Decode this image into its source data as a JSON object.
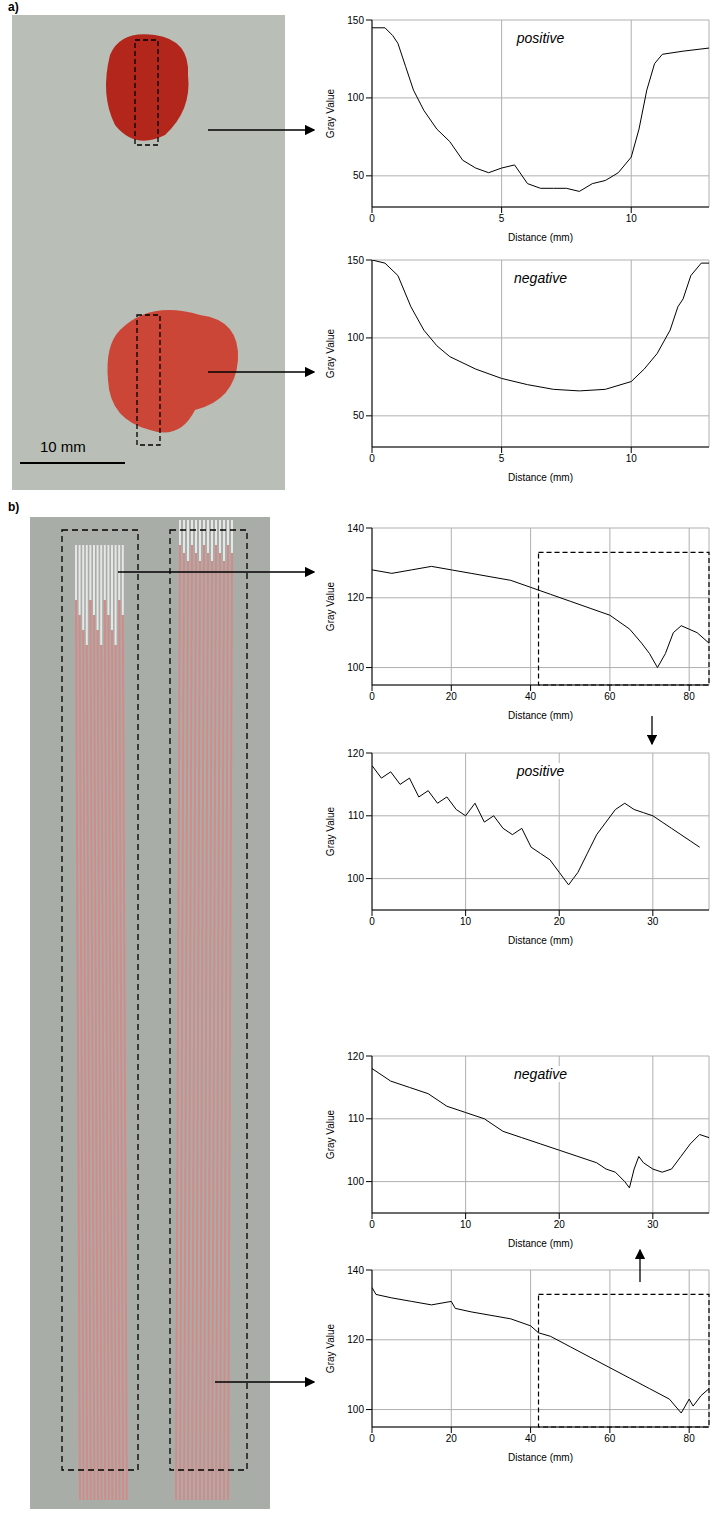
{
  "panel_labels": [
    "a)",
    "b)"
  ],
  "scale_bar": "10 mm",
  "chart_data": [
    {
      "type": "line",
      "title": "positive",
      "x_label": "Distance (mm)",
      "y_label": "Gray Value",
      "color": "#000000",
      "grid": true,
      "x": [
        0,
        0.5,
        0.8,
        1.0,
        1.3,
        1.6,
        2.0,
        2.5,
        3.0,
        3.5,
        4.0,
        4.5,
        5.0,
        5.5,
        6.0,
        6.5,
        7.0,
        7.5,
        8.0,
        8.5,
        9.0,
        9.5,
        10.0,
        10.3,
        10.6,
        10.9,
        11.2,
        12.0,
        13.0
      ],
      "values": [
        145,
        145,
        140,
        135,
        120,
        105,
        92,
        80,
        72,
        60,
        55,
        52,
        55,
        57,
        45,
        42,
        42,
        42,
        40,
        45,
        47,
        52,
        62,
        80,
        105,
        122,
        128,
        130,
        132
      ],
      "xlim": [
        0,
        13
      ],
      "xticks": [
        0,
        5,
        10
      ],
      "ylim": [
        30,
        150
      ],
      "yticks": [
        50,
        100,
        150
      ]
    },
    {
      "type": "line",
      "title": "negative",
      "x_label": "Distance (mm)",
      "y_label": "Gray Value",
      "color": "#000000",
      "grid": true,
      "x": [
        0,
        0.5,
        1.0,
        1.5,
        2.0,
        2.5,
        3.0,
        4.0,
        5.0,
        6.0,
        7.0,
        8.0,
        9.0,
        10.0,
        10.5,
        11.0,
        11.5,
        11.8,
        12.0,
        12.3,
        12.7,
        13.0
      ],
      "values": [
        150,
        148,
        140,
        120,
        105,
        95,
        88,
        80,
        74,
        70,
        67,
        66,
        67,
        72,
        80,
        90,
        105,
        120,
        125,
        140,
        148,
        148
      ],
      "xlim": [
        0,
        13
      ],
      "xticks": [
        0,
        5,
        10
      ],
      "ylim": [
        30,
        150
      ],
      "yticks": [
        50,
        100,
        150
      ]
    },
    {
      "type": "line",
      "x_label": "Distance (mm)",
      "y_label": "Gray Value",
      "color": "#000000",
      "grid": true,
      "x": [
        0,
        5,
        10,
        15,
        20,
        25,
        30,
        35,
        40,
        45,
        50,
        55,
        60,
        65,
        68,
        70,
        72,
        74,
        76,
        78,
        80,
        82,
        85
      ],
      "values": [
        128,
        127,
        128,
        129,
        128,
        127,
        126,
        125,
        123,
        121,
        119,
        117,
        115,
        111,
        107,
        104,
        100,
        104,
        110,
        112,
        111,
        110,
        107
      ],
      "xlim": [
        0,
        85
      ],
      "xticks": [
        0,
        20,
        40,
        60,
        80
      ],
      "ylim": [
        95,
        140
      ],
      "yticks": [
        100,
        120,
        140
      ],
      "zoom_range": {
        "x": [
          42,
          85
        ],
        "y": [
          95,
          133
        ]
      }
    },
    {
      "type": "line",
      "title": "positive",
      "x_label": "Distance (mm)",
      "y_label": "Gray Value",
      "color": "#000000",
      "grid": true,
      "x": [
        0,
        1,
        2,
        3,
        4,
        5,
        6,
        7,
        8,
        9,
        10,
        11,
        12,
        13,
        14,
        15,
        16,
        17,
        18,
        19,
        20,
        21,
        21.5,
        22,
        23,
        24,
        25,
        26,
        27,
        28,
        29,
        30,
        31,
        32,
        33,
        34,
        35
      ],
      "values": [
        118,
        116,
        117,
        115,
        116,
        113,
        114,
        112,
        113,
        111,
        110,
        112,
        109,
        110,
        108,
        107,
        108,
        105,
        104,
        103,
        101,
        99,
        100,
        101,
        104,
        107,
        109,
        111,
        112,
        111,
        110.5,
        110,
        109,
        108,
        107,
        106,
        105
      ],
      "xlim": [
        0,
        36
      ],
      "xticks": [
        0,
        10,
        20,
        30
      ],
      "ylim": [
        95,
        120
      ],
      "yticks": [
        100,
        110,
        120
      ]
    },
    {
      "type": "line",
      "title": "negative",
      "x_label": "Distance (mm)",
      "y_label": "Gray Value",
      "color": "#000000",
      "grid": true,
      "x": [
        0,
        2,
        4,
        6,
        8,
        10,
        12,
        14,
        16,
        18,
        20,
        22,
        24,
        25,
        26,
        27,
        27.5,
        28,
        28.5,
        29,
        30,
        31,
        32,
        33,
        34,
        35,
        36
      ],
      "values": [
        118,
        116,
        115,
        114,
        112,
        111,
        110,
        108,
        107,
        106,
        105,
        104,
        103,
        102,
        101.5,
        100,
        99,
        102,
        104,
        103,
        102,
        101.5,
        102,
        104,
        106,
        107.5,
        107
      ],
      "xlim": [
        0,
        36
      ],
      "xticks": [
        0,
        10,
        20,
        30
      ],
      "ylim": [
        95,
        120
      ],
      "yticks": [
        100,
        110,
        120
      ]
    },
    {
      "type": "line",
      "x_label": "Distance (mm)",
      "y_label": "Gray Value",
      "color": "#000000",
      "grid": true,
      "x": [
        0,
        1,
        5,
        10,
        15,
        20,
        21,
        25,
        30,
        35,
        40,
        42,
        45,
        50,
        55,
        60,
        65,
        70,
        75,
        78,
        79,
        80,
        81,
        83,
        85
      ],
      "values": [
        135,
        133,
        132,
        131,
        130,
        131,
        129,
        128,
        127,
        126,
        124,
        122,
        121,
        118,
        115,
        112,
        109,
        106,
        103,
        99,
        101,
        103,
        101,
        104,
        106
      ],
      "xlim": [
        0,
        85
      ],
      "xticks": [
        0,
        20,
        40,
        60,
        80
      ],
      "ylim": [
        95,
        140
      ],
      "yticks": [
        100,
        120,
        140
      ],
      "zoom_range": {
        "x": [
          42,
          85
        ],
        "y": [
          95,
          133
        ]
      }
    }
  ]
}
